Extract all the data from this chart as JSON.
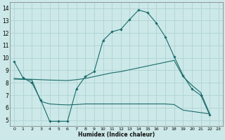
{
  "xlabel": "Humidex (Indice chaleur)",
  "bg_color": "#cce8e8",
  "grid_color": "#aacfcf",
  "line_color": "#1a6b6b",
  "xlim": [
    -0.5,
    23.5
  ],
  "ylim": [
    4.5,
    14.5
  ],
  "xticks": [
    0,
    1,
    2,
    3,
    4,
    5,
    6,
    7,
    8,
    9,
    10,
    11,
    12,
    13,
    14,
    15,
    16,
    17,
    18,
    19,
    20,
    21,
    22,
    23
  ],
  "yticks": [
    5,
    6,
    7,
    8,
    9,
    10,
    11,
    12,
    13,
    14
  ],
  "curve1_x": [
    0,
    1,
    2,
    3,
    4,
    5,
    6,
    7,
    8,
    9,
    10,
    11,
    12,
    13,
    14,
    15,
    16,
    17,
    18,
    19,
    20,
    21,
    22
  ],
  "curve1_y": [
    9.7,
    8.4,
    8.0,
    6.6,
    4.9,
    4.9,
    4.9,
    7.5,
    8.5,
    8.9,
    11.4,
    12.1,
    12.3,
    13.1,
    13.85,
    13.65,
    12.8,
    11.7,
    10.1,
    8.6,
    7.5,
    7.0,
    5.4
  ],
  "curve2_x": [
    0,
    1,
    2,
    3,
    4,
    5,
    6,
    7,
    8,
    9,
    10,
    11,
    12,
    13,
    14,
    15,
    16,
    17,
    18,
    19,
    20,
    21,
    22
  ],
  "curve2_y": [
    8.35,
    8.3,
    8.28,
    8.25,
    8.22,
    8.2,
    8.18,
    8.25,
    8.35,
    8.5,
    8.65,
    8.8,
    8.9,
    9.05,
    9.2,
    9.35,
    9.5,
    9.65,
    9.8,
    8.5,
    7.8,
    7.2,
    5.5
  ],
  "curve3_x": [
    0,
    1,
    2,
    3,
    4,
    5,
    6,
    7,
    8,
    9,
    10,
    11,
    12,
    13,
    14,
    15,
    16,
    17,
    18,
    19,
    20,
    21,
    22
  ],
  "curve3_y": [
    8.3,
    8.28,
    8.22,
    6.5,
    6.3,
    6.25,
    6.22,
    6.25,
    6.3,
    6.3,
    6.3,
    6.3,
    6.3,
    6.3,
    6.3,
    6.3,
    6.3,
    6.3,
    6.25,
    5.8,
    5.7,
    5.6,
    5.5
  ]
}
